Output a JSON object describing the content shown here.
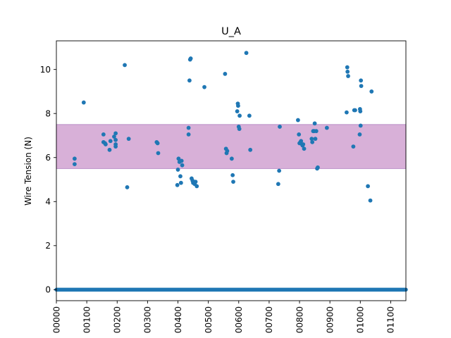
{
  "chart_data": {
    "type": "scatter",
    "title": "U_A",
    "xlabel": "",
    "ylabel": "Wire Tension (N)",
    "xlim": [
      0,
      1150
    ],
    "ylim": [
      -0.5,
      11.3
    ],
    "x_tick_values": [
      0,
      100,
      200,
      300,
      400,
      500,
      600,
      700,
      800,
      900,
      1000,
      1100
    ],
    "x_tick_labels": [
      "00000",
      "00100",
      "00200",
      "00300",
      "00400",
      "00500",
      "00600",
      "00700",
      "00800",
      "00900",
      "01000",
      "01100"
    ],
    "y_tick_values": [
      0,
      2,
      4,
      6,
      8,
      10
    ],
    "y_tick_labels": [
      "0",
      "2",
      "4",
      "6",
      "8",
      "10"
    ],
    "grid": false,
    "band": {
      "y_low": 5.5,
      "y_high": 7.5,
      "color": "#d8b0d8",
      "edge_color": "#b07fbf"
    },
    "marker_color": "#1f77b4",
    "zero_line_range": [
      0,
      1150
    ],
    "series": [
      {
        "values": [
          [
            60,
            5.95
          ],
          [
            60,
            5.7
          ],
          [
            90,
            8.5
          ],
          [
            155,
            7.05
          ],
          [
            155,
            6.7
          ],
          [
            160,
            6.65
          ],
          [
            162,
            6.6
          ],
          [
            175,
            6.35
          ],
          [
            178,
            6.75
          ],
          [
            190,
            6.95
          ],
          [
            195,
            7.1
          ],
          [
            195,
            6.8
          ],
          [
            195,
            6.6
          ],
          [
            195,
            6.5
          ],
          [
            225,
            10.2
          ],
          [
            233,
            4.65
          ],
          [
            238,
            6.85
          ],
          [
            330,
            6.7
          ],
          [
            333,
            6.65
          ],
          [
            335,
            6.2
          ],
          [
            398,
            4.75
          ],
          [
            400,
            5.45
          ],
          [
            402,
            5.95
          ],
          [
            405,
            5.8
          ],
          [
            408,
            5.15
          ],
          [
            410,
            4.85
          ],
          [
            412,
            5.85
          ],
          [
            414,
            5.65
          ],
          [
            435,
            7.35
          ],
          [
            435,
            7.05
          ],
          [
            438,
            9.5
          ],
          [
            440,
            10.45
          ],
          [
            442,
            10.5
          ],
          [
            445,
            5.05
          ],
          [
            448,
            4.95
          ],
          [
            450,
            4.85
          ],
          [
            452,
            4.9
          ],
          [
            455,
            4.8
          ],
          [
            458,
            4.9
          ],
          [
            462,
            4.7
          ],
          [
            487,
            9.2
          ],
          [
            555,
            9.8
          ],
          [
            558,
            6.4
          ],
          [
            560,
            6.2
          ],
          [
            562,
            6.3
          ],
          [
            577,
            5.95
          ],
          [
            580,
            5.2
          ],
          [
            582,
            4.9
          ],
          [
            595,
            8.1
          ],
          [
            597,
            8.45
          ],
          [
            598,
            8.35
          ],
          [
            600,
            7.4
          ],
          [
            602,
            7.3
          ],
          [
            603,
            7.9
          ],
          [
            625,
            10.75
          ],
          [
            635,
            7.9
          ],
          [
            638,
            6.35
          ],
          [
            730,
            4.8
          ],
          [
            733,
            5.4
          ],
          [
            735,
            7.4
          ],
          [
            795,
            7.7
          ],
          [
            798,
            7.05
          ],
          [
            800,
            6.65
          ],
          [
            803,
            6.7
          ],
          [
            805,
            6.75
          ],
          [
            808,
            6.6
          ],
          [
            810,
            6.55
          ],
          [
            812,
            6.6
          ],
          [
            815,
            6.4
          ],
          [
            840,
            6.85
          ],
          [
            842,
            6.7
          ],
          [
            845,
            7.2
          ],
          [
            848,
            7.2
          ],
          [
            850,
            7.55
          ],
          [
            852,
            6.85
          ],
          [
            855,
            7.2
          ],
          [
            858,
            5.5
          ],
          [
            860,
            5.55
          ],
          [
            890,
            7.35
          ],
          [
            955,
            8.05
          ],
          [
            957,
            10.1
          ],
          [
            958,
            9.9
          ],
          [
            960,
            9.7
          ],
          [
            977,
            6.5
          ],
          [
            980,
            8.15
          ],
          [
            983,
            8.15
          ],
          [
            998,
            7.05
          ],
          [
            999,
            8.2
          ],
          [
            1000,
            8.1
          ],
          [
            1001,
            7.45
          ],
          [
            1002,
            9.5
          ],
          [
            1003,
            9.25
          ],
          [
            1025,
            4.7
          ],
          [
            1033,
            4.05
          ],
          [
            1037,
            9.0
          ]
        ]
      }
    ]
  }
}
